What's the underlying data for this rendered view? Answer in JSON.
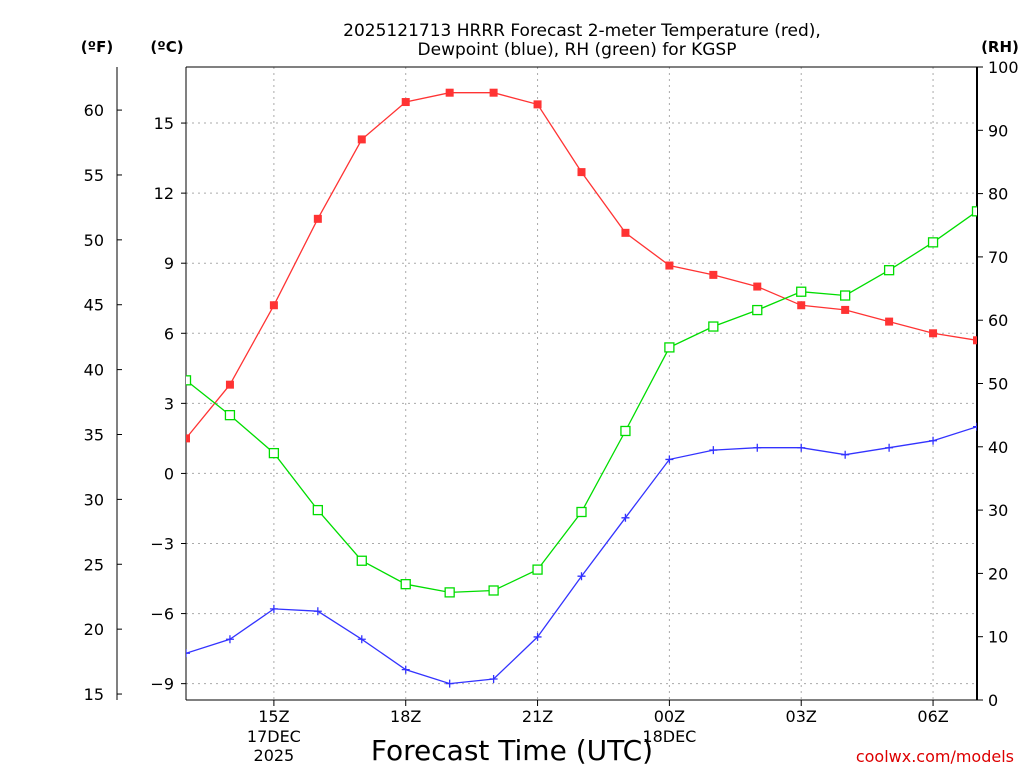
{
  "chart_data": {
    "type": "line",
    "title_line1": "2025121713 HRRR Forecast 2-meter Temperature (red),",
    "title_line2": "Dewpoint (blue), RH (green) for KGSP",
    "xlabel": "Forecast Time (UTC)",
    "unit_labels": {
      "fahrenheit": "(ºF)",
      "celsius": "(ºC)",
      "rh": "(RH)"
    },
    "watermark": "coolwx.com/models",
    "x_hours": [
      13,
      14,
      15,
      16,
      17,
      18,
      19,
      20,
      21,
      22,
      23,
      24,
      25,
      26,
      27,
      28,
      29,
      30,
      31
    ],
    "x_range": [
      13,
      31
    ],
    "x_ticks": [
      {
        "hour": 15,
        "label": "15Z",
        "sub1": "17DEC",
        "sub2": "2025"
      },
      {
        "hour": 18,
        "label": "18Z",
        "sub1": "",
        "sub2": ""
      },
      {
        "hour": 21,
        "label": "21Z",
        "sub1": "",
        "sub2": ""
      },
      {
        "hour": 24,
        "label": "00Z",
        "sub1": "18DEC",
        "sub2": ""
      },
      {
        "hour": 27,
        "label": "03Z",
        "sub1": "",
        "sub2": ""
      },
      {
        "hour": 30,
        "label": "06Z",
        "sub1": "",
        "sub2": ""
      }
    ],
    "celsius_range": [
      -9.7,
      17.4
    ],
    "celsius_ticks": [
      {
        "value": 15,
        "label": "15"
      },
      {
        "value": 12,
        "label": "12"
      },
      {
        "value": 9,
        "label": "9"
      },
      {
        "value": 6,
        "label": "6"
      },
      {
        "value": 3,
        "label": "3"
      },
      {
        "value": 0,
        "label": "0"
      },
      {
        "value": -3,
        "label": "−3"
      },
      {
        "value": -6,
        "label": "−6"
      },
      {
        "value": -9,
        "label": "−9"
      }
    ],
    "fahrenheit_ticks": [
      {
        "value": 60,
        "label": "60"
      },
      {
        "value": 55,
        "label": "55"
      },
      {
        "value": 50,
        "label": "50"
      },
      {
        "value": 45,
        "label": "45"
      },
      {
        "value": 40,
        "label": "40"
      },
      {
        "value": 35,
        "label": "35"
      },
      {
        "value": 30,
        "label": "30"
      },
      {
        "value": 25,
        "label": "25"
      },
      {
        "value": 20,
        "label": "20"
      },
      {
        "value": 15,
        "label": "15"
      }
    ],
    "rh_range": [
      0,
      100
    ],
    "rh_ticks": [
      {
        "value": 100,
        "label": "100"
      },
      {
        "value": 90,
        "label": "90"
      },
      {
        "value": 80,
        "label": "80"
      },
      {
        "value": 70,
        "label": "70"
      },
      {
        "value": 60,
        "label": "60"
      },
      {
        "value": 50,
        "label": "50"
      },
      {
        "value": 40,
        "label": "40"
      },
      {
        "value": 30,
        "label": "30"
      },
      {
        "value": 20,
        "label": "20"
      },
      {
        "value": 10,
        "label": "10"
      },
      {
        "value": 0,
        "label": "0"
      }
    ],
    "series": [
      {
        "name": "Temperature",
        "axis": "celsius",
        "color": "#ff3333",
        "marker": "filled-square",
        "values": [
          1.5,
          3.8,
          7.2,
          10.9,
          14.3,
          15.9,
          16.3,
          16.3,
          15.8,
          12.9,
          10.3,
          8.9,
          8.5,
          8.0,
          7.2,
          7.0,
          6.5,
          6.0,
          5.7
        ]
      },
      {
        "name": "Dewpoint",
        "axis": "celsius",
        "color": "#3333ff",
        "marker": "plus",
        "values": [
          -7.7,
          -7.1,
          -5.8,
          -5.9,
          -7.1,
          -8.4,
          -9.0,
          -8.8,
          -7.0,
          -4.4,
          -1.9,
          0.6,
          1.0,
          1.1,
          1.1,
          0.8,
          1.1,
          1.4,
          2.0
        ]
      },
      {
        "name": "RH",
        "axis": "rh",
        "color": "#00dd00",
        "marker": "open-square",
        "values": [
          50.5,
          45.0,
          39.0,
          30.0,
          22.0,
          18.3,
          17.0,
          17.3,
          20.6,
          29.7,
          42.5,
          55.7,
          59.0,
          61.6,
          64.5,
          63.9,
          67.9,
          72.3,
          77.2
        ]
      }
    ]
  }
}
